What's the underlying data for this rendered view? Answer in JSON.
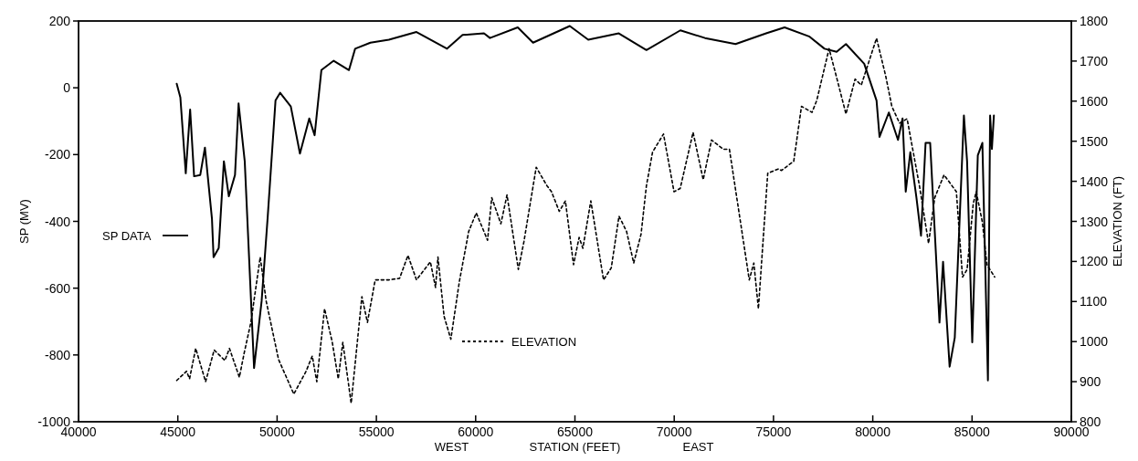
{
  "chart_data": {
    "type": "line",
    "xlabel": "STATION (FEET)",
    "ylabel": "SP (MV)",
    "y2label": "ELEVATION (FT)",
    "annotations": [
      "WEST",
      "EAST"
    ],
    "xlim": [
      40000,
      90000
    ],
    "xticks": [
      40000,
      45000,
      50000,
      55000,
      60000,
      65000,
      70000,
      75000,
      80000,
      85000,
      90000
    ],
    "ylim": [
      -1000,
      200
    ],
    "yticks": [
      -1000,
      -800,
      -600,
      -400,
      -200,
      0,
      200
    ],
    "y2lim": [
      800,
      1800
    ],
    "y2ticks": [
      800,
      900,
      1000,
      1100,
      1200,
      1300,
      1400,
      1500,
      1600,
      1700,
      1800
    ],
    "grid": false,
    "legend": "left",
    "marker": "none",
    "series": [
      {
        "name": "SP DATA",
        "color": "#000000",
        "line_style": "solid",
        "x": [
          44944,
          45128,
          45400,
          45620,
          45820,
          46130,
          46365,
          46720,
          46800,
          47060,
          47320,
          47570,
          47880,
          48060,
          48370,
          48840,
          49220,
          49530,
          49920,
          50150,
          50690,
          51150,
          51620,
          51890,
          52230,
          52850,
          53620,
          53930,
          54700,
          55630,
          57020,
          58560,
          59340,
          60420,
          60720,
          62120,
          62890,
          64740,
          65670,
          67210,
          68600,
          70310,
          71550,
          73090,
          74630,
          75560,
          76790,
          77570,
          78180,
          78650,
          79570,
          80190,
          80340,
          80810,
          81270,
          81500,
          81660,
          81890,
          82200,
          82430,
          82660,
          82890,
          83360,
          83540,
          83870,
          84130,
          84590,
          84750,
          85010,
          85290,
          85520,
          85800,
          85910,
          86000,
          86100
        ],
        "values": [
          12,
          -29,
          -256,
          -65,
          -265,
          -261,
          -179,
          -393,
          -507,
          -480,
          -220,
          -325,
          -261,
          -47,
          -220,
          -839,
          -639,
          -384,
          -38,
          -15,
          -56,
          -197,
          -92,
          -142,
          53,
          81,
          53,
          117,
          135,
          144,
          167,
          117,
          158,
          163,
          149,
          181,
          135,
          185,
          144,
          163,
          113,
          172,
          149,
          131,
          163,
          181,
          154,
          117,
          108,
          131,
          72,
          -38,
          -147,
          -74,
          -156,
          -92,
          -311,
          -193,
          -329,
          -443,
          -165,
          -165,
          -703,
          -521,
          -835,
          -748,
          -83,
          -220,
          -762,
          -202,
          -165,
          -876,
          -83,
          -183,
          -83
        ]
      },
      {
        "name": "ELEVATION",
        "color": "#000000",
        "line_style": "dotted",
        "axis": "y2",
        "x": [
          44944,
          45440,
          45590,
          45900,
          46400,
          46830,
          47370,
          47600,
          48100,
          48340,
          48680,
          49150,
          49450,
          50070,
          50840,
          51460,
          51770,
          52000,
          52390,
          52780,
          53080,
          53310,
          53730,
          54270,
          54550,
          54940,
          55630,
          56170,
          56590,
          57020,
          57720,
          57980,
          58100,
          58410,
          58750,
          59180,
          59650,
          60030,
          60600,
          60810,
          61270,
          61580,
          62150,
          62430,
          63050,
          63590,
          63820,
          64210,
          64520,
          64930,
          65210,
          65400,
          65800,
          66440,
          66830,
          67220,
          67600,
          67960,
          68330,
          68600,
          68910,
          69460,
          69990,
          70300,
          70950,
          71460,
          71880,
          72470,
          72780,
          73780,
          74010,
          74240,
          74710,
          75250,
          75400,
          76020,
          76410,
          76940,
          77180,
          77800,
          78180,
          78650,
          79110,
          79420,
          80190,
          80650,
          80960,
          81350,
          81730,
          82350,
          82810,
          83120,
          83590,
          84210,
          84520,
          84750,
          85060,
          85210,
          85520,
          85750,
          86140
        ],
        "values": [
          903,
          926,
          907,
          983,
          900,
          979,
          953,
          983,
          911,
          971,
          1048,
          1211,
          1101,
          956,
          869,
          926,
          964,
          900,
          1082,
          998,
          907,
          998,
          846,
          1112,
          1048,
          1154,
          1154,
          1158,
          1215,
          1154,
          1199,
          1135,
          1211,
          1063,
          1006,
          1150,
          1275,
          1321,
          1253,
          1359,
          1294,
          1366,
          1180,
          1249,
          1435,
          1389,
          1374,
          1325,
          1351,
          1192,
          1260,
          1233,
          1351,
          1154,
          1184,
          1313,
          1275,
          1196,
          1268,
          1389,
          1473,
          1518,
          1374,
          1382,
          1522,
          1404,
          1503,
          1480,
          1480,
          1154,
          1196,
          1082,
          1420,
          1431,
          1427,
          1450,
          1587,
          1572,
          1602,
          1731,
          1659,
          1568,
          1655,
          1640,
          1757,
          1663,
          1587,
          1545,
          1556,
          1389,
          1245,
          1359,
          1416,
          1374,
          1161,
          1180,
          1344,
          1374,
          1298,
          1192,
          1161
        ]
      }
    ]
  }
}
